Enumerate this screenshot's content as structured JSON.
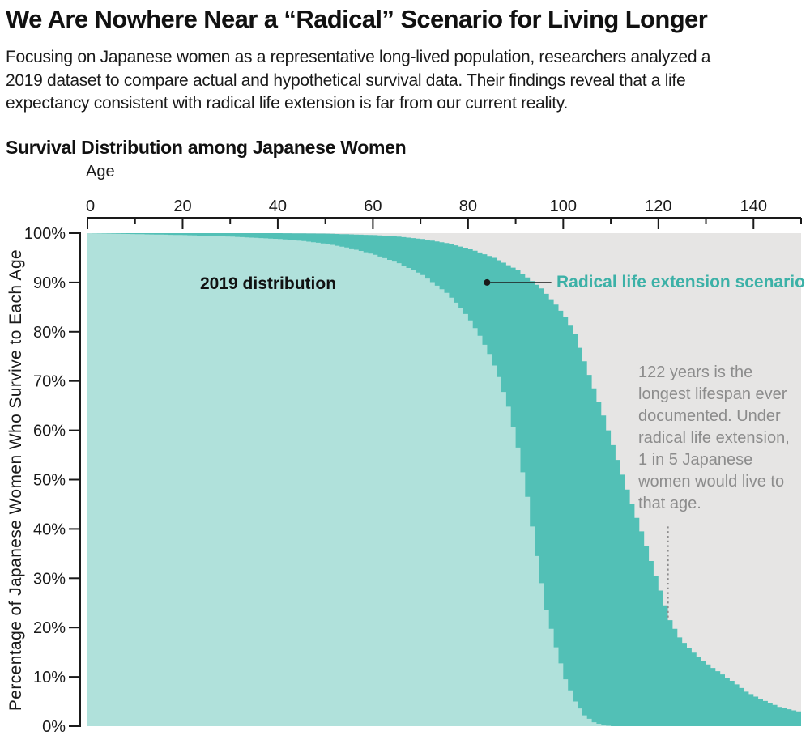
{
  "header": {
    "title": "We Are Nowhere Near a “Radical” Scenario for Living Longer",
    "subtitle": "Focusing on Japanese women as a representative long-lived population, researchers analyzed a\n2019 dataset to compare actual and hypothetical survival data. Their findings reveal that a life\nexpectancy consistent with radical life extension is far from our current reality."
  },
  "chart": {
    "title": "Survival Distribution among Japanese Women",
    "x_axis_label": "Age",
    "y_axis_label": "Percentage of Japanese Women Who Survive to Each Age"
  },
  "chart_data": {
    "type": "area",
    "title": "Survival Distribution among Japanese Women",
    "xlabel": "Age",
    "ylabel": "Percentage of Japanese Women Who Survive to Each Age",
    "x_range": [
      0,
      150
    ],
    "y_range_percent": [
      0,
      100
    ],
    "x_major_ticks": [
      0,
      20,
      40,
      60,
      80,
      100,
      120,
      140
    ],
    "x_minor_ticks": [
      10,
      30,
      50,
      70,
      90,
      110,
      130,
      150
    ],
    "y_ticks_percent": [
      0,
      10,
      20,
      30,
      40,
      50,
      60,
      70,
      80,
      90,
      100
    ],
    "grid": false,
    "plot_background": "#e6e5e4",
    "step_years": 1,
    "series": [
      {
        "name": "2019 distribution",
        "color": "#b0e1db",
        "label_color": "#111111",
        "anchors_age_percent": [
          [
            0,
            100
          ],
          [
            10,
            99.8
          ],
          [
            20,
            99.6
          ],
          [
            30,
            99.3
          ],
          [
            40,
            98.8
          ],
          [
            45,
            98.4
          ],
          [
            50,
            97.8
          ],
          [
            55,
            96.9
          ],
          [
            60,
            95.6
          ],
          [
            65,
            93.9
          ],
          [
            70,
            91.5
          ],
          [
            75,
            87.9
          ],
          [
            78,
            84.9
          ],
          [
            80,
            82.3
          ],
          [
            82,
            79.2
          ],
          [
            84,
            75.5
          ],
          [
            86,
            70.8
          ],
          [
            88,
            64.8
          ],
          [
            90,
            56.5
          ],
          [
            92,
            46.5
          ],
          [
            94,
            34.5
          ],
          [
            96,
            23.5
          ],
          [
            98,
            16.0
          ],
          [
            100,
            9.5
          ],
          [
            102,
            5.0
          ],
          [
            104,
            2.2
          ],
          [
            106,
            0.8
          ],
          [
            108,
            0.2
          ],
          [
            110,
            0
          ],
          [
            150,
            0
          ]
        ]
      },
      {
        "name": "Radical life extension scenario",
        "color": "#52c0b6",
        "label_color": "#3cb1a7",
        "anchors_age_percent": [
          [
            0,
            100
          ],
          [
            40,
            100
          ],
          [
            50,
            99.9
          ],
          [
            60,
            99.6
          ],
          [
            65,
            99.3
          ],
          [
            70,
            98.8
          ],
          [
            75,
            98.0
          ],
          [
            80,
            96.8
          ],
          [
            85,
            95.0
          ],
          [
            90,
            92.5
          ],
          [
            95,
            88.8
          ],
          [
            98,
            85.5
          ],
          [
            100,
            83.0
          ],
          [
            102,
            79.5
          ],
          [
            104,
            74.0
          ],
          [
            106,
            68.5
          ],
          [
            108,
            63.0
          ],
          [
            110,
            57.0
          ],
          [
            112,
            51.0
          ],
          [
            114,
            45.0
          ],
          [
            116,
            39.5
          ],
          [
            118,
            33.5
          ],
          [
            120,
            27.5
          ],
          [
            122,
            21.5
          ],
          [
            124,
            18.0
          ],
          [
            126,
            15.8
          ],
          [
            128,
            14.0
          ],
          [
            131,
            11.8
          ],
          [
            135,
            9.2
          ],
          [
            138,
            7.0
          ],
          [
            141,
            5.5
          ],
          [
            145,
            3.9
          ],
          [
            148,
            3.2
          ],
          [
            150,
            2.8
          ]
        ]
      }
    ],
    "callout": {
      "dot_age": 84,
      "dot_percent": 90,
      "line_to_age": 97.5
    },
    "annotation": {
      "text": "122 years is the\nlongest lifespan ever\ndocumented. Under\nradical life extension,\n1 in 5 Japanese\nwomen would live to\nthat age.",
      "color": "#8c8c8c",
      "dotted_line_age": 122,
      "dotted_line_from_percent": 40.5,
      "dotted_line_to_percent": 21.8
    }
  }
}
